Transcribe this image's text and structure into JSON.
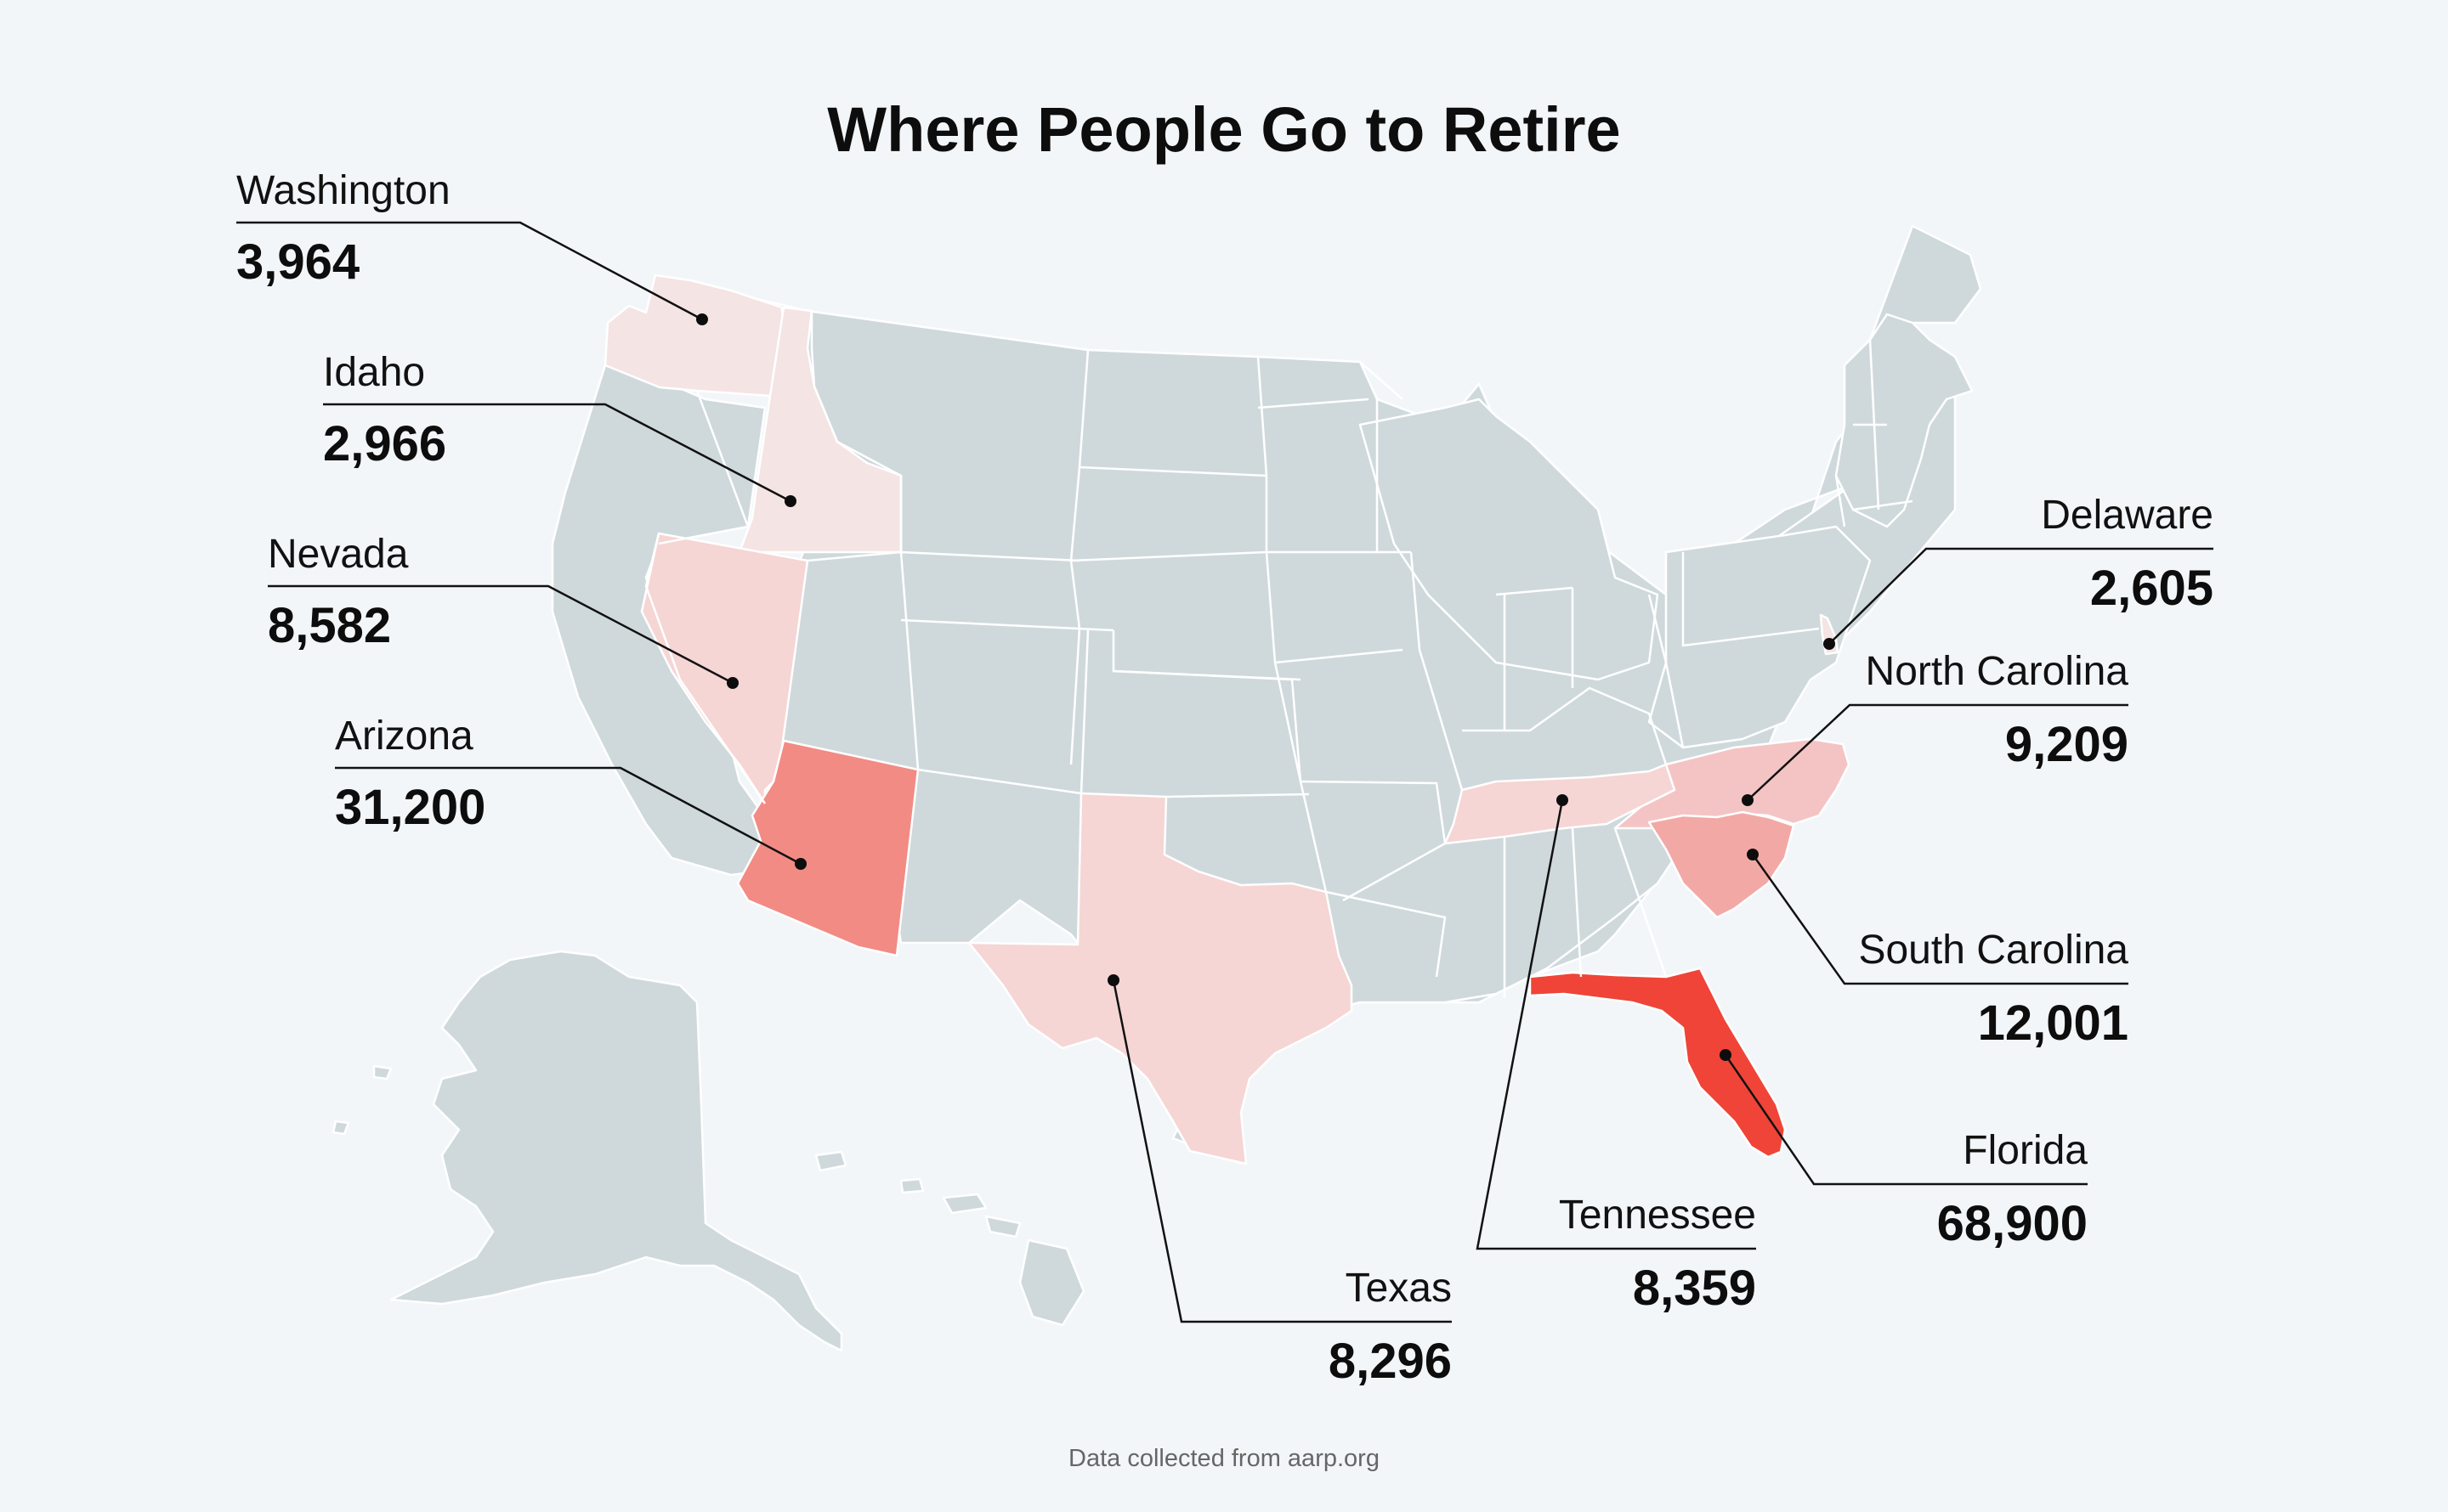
{
  "title": "Where People Go to Retire",
  "footer": "Data collected from aarp.org",
  "colors": {
    "background": "#f2f6f9",
    "base_state": "#cfd9dc",
    "scale": [
      "#f5e4e4",
      "#f6d5d5",
      "#f4c4c4",
      "#f2a9a6",
      "#f28b84",
      "#ef4437"
    ]
  },
  "chart_data": {
    "type": "choropleth",
    "region": "United States",
    "series": [
      {
        "state": "Washington",
        "value": 3964,
        "label": "3,964"
      },
      {
        "state": "Idaho",
        "value": 2966,
        "label": "2,966"
      },
      {
        "state": "Nevada",
        "value": 8582,
        "label": "8,582"
      },
      {
        "state": "Arizona",
        "value": 31200,
        "label": "31,200"
      },
      {
        "state": "Texas",
        "value": 8296,
        "label": "8,296"
      },
      {
        "state": "Tennessee",
        "value": 8359,
        "label": "8,359"
      },
      {
        "state": "Florida",
        "value": 68900,
        "label": "68,900"
      },
      {
        "state": "South Carolina",
        "value": 12001,
        "label": "12,001"
      },
      {
        "state": "North Carolina",
        "value": 9209,
        "label": "9,209"
      },
      {
        "state": "Delaware",
        "value": 2605,
        "label": "2,605"
      }
    ]
  }
}
